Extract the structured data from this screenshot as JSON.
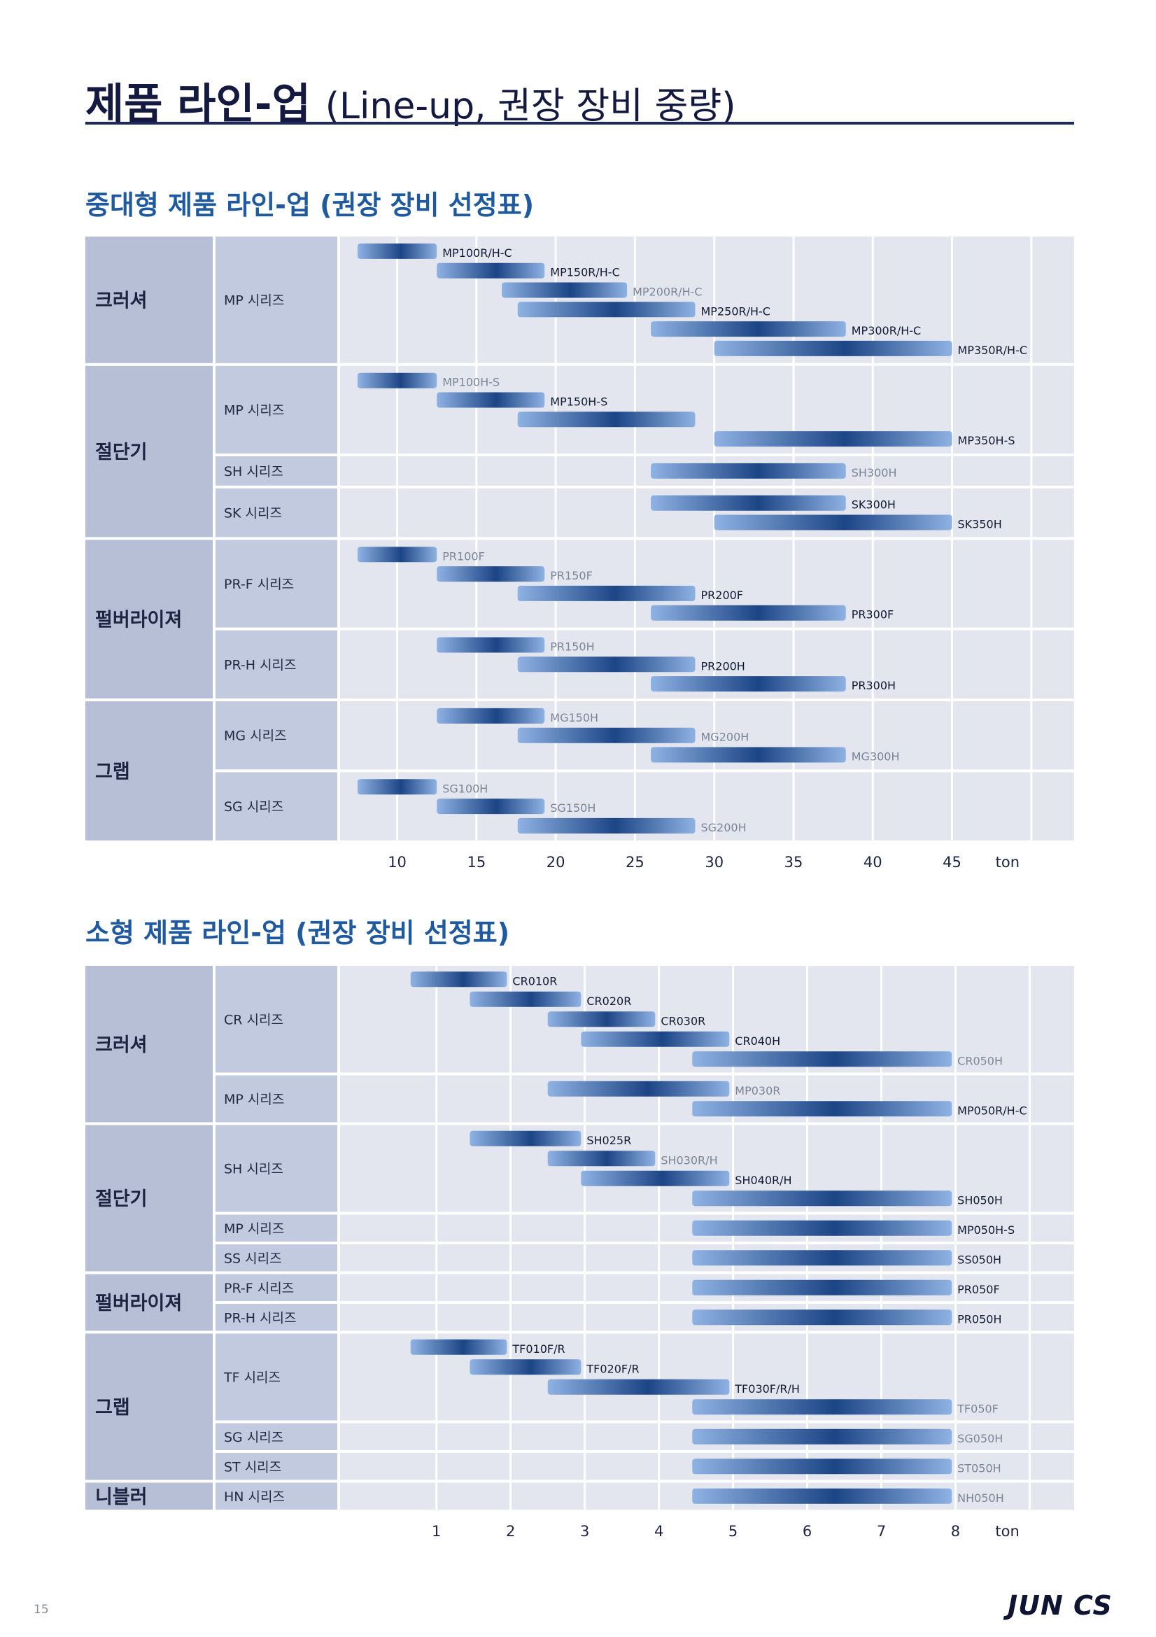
{
  "page": {
    "title_main": "제품 라인-업",
    "title_sub": "(Line-up, 권장 장비 중량)",
    "page_number": "15",
    "logo": "JUN CS"
  },
  "colors": {
    "navy": "#14193f",
    "section_blue": "#1f5aa0",
    "cat_bg": "#b6bfd6",
    "sub_bg": "#c1cadf",
    "plot_bg": "#e3e6ee",
    "bar_light": "#8fb2e3",
    "bar_dark": "#1c4585"
  },
  "sections": [
    {
      "title": "중대형 제품 라인-업 (권장 장비 선정표)"
    },
    {
      "title": "소형 제품 라인-업 (권장 장비 선정표)"
    }
  ],
  "chart_data": [
    {
      "type": "bar",
      "orientation": "horizontal-range",
      "unit": "ton",
      "ticks": [
        10,
        15,
        20,
        25,
        30,
        35,
        40,
        45
      ],
      "x_range": [
        6.4,
        52.7
      ],
      "categories": [
        {
          "name": "크러셔",
          "groups": [
            {
              "name": "MP 시리즈",
              "rows": 6,
              "bars": [
                {
                  "label": "MP100R/H-C",
                  "from": 7.5,
                  "to": 12.5,
                  "row": 0
                },
                {
                  "label": "MP150R/H-C",
                  "from": 12.5,
                  "to": 19.3,
                  "row": 1
                },
                {
                  "label": "MP200R/H-C",
                  "from": 16.6,
                  "to": 24.5,
                  "row": 2,
                  "dim": true
                },
                {
                  "label": "MP250R/H-C",
                  "from": 17.6,
                  "to": 28.8,
                  "row": 3
                },
                {
                  "label": "MP300R/H-C",
                  "from": 26.0,
                  "to": 38.3,
                  "row": 4
                },
                {
                  "label": "MP350R/H-C",
                  "from": 30.0,
                  "to": 45.0,
                  "row": 5
                }
              ]
            }
          ]
        },
        {
          "name": "절단기",
          "groups": [
            {
              "name": "MP 시리즈",
              "rows": 4,
              "bars": [
                {
                  "label": "MP100H-S",
                  "from": 7.5,
                  "to": 12.5,
                  "row": 0,
                  "dim": true
                },
                {
                  "label": "MP150H-S",
                  "from": 12.5,
                  "to": 19.3,
                  "row": 1
                },
                {
                  "label": "",
                  "from": 17.6,
                  "to": 28.8,
                  "row": 2
                },
                {
                  "label": "MP350H-S",
                  "from": 30.0,
                  "to": 45.0,
                  "row": 3
                }
              ]
            },
            {
              "name": "SH 시리즈",
              "rows": 1,
              "bars": [
                {
                  "label": "SH300H",
                  "from": 26.0,
                  "to": 38.3,
                  "row": 0,
                  "dim": true
                }
              ]
            },
            {
              "name": "SK 시리즈",
              "rows": 2,
              "bars": [
                {
                  "label": "SK300H",
                  "from": 26.0,
                  "to": 38.3,
                  "row": 0
                },
                {
                  "label": "SK350H",
                  "from": 30.0,
                  "to": 45.0,
                  "row": 1
                }
              ]
            }
          ]
        },
        {
          "name": "펄버라이져",
          "groups": [
            {
              "name": "PR-F 시리즈",
              "rows": 4,
              "bars": [
                {
                  "label": "PR100F",
                  "from": 7.5,
                  "to": 12.5,
                  "row": 0,
                  "dim": true
                },
                {
                  "label": "PR150F",
                  "from": 12.5,
                  "to": 19.3,
                  "row": 1,
                  "dim": true
                },
                {
                  "label": "PR200F",
                  "from": 17.6,
                  "to": 28.8,
                  "row": 2
                },
                {
                  "label": "PR300F",
                  "from": 26.0,
                  "to": 38.3,
                  "row": 3
                }
              ]
            },
            {
              "name": "PR-H 시리즈",
              "rows": 3,
              "bars": [
                {
                  "label": "PR150H",
                  "from": 12.5,
                  "to": 19.3,
                  "row": 0,
                  "dim": true
                },
                {
                  "label": "PR200H",
                  "from": 17.6,
                  "to": 28.8,
                  "row": 1
                },
                {
                  "label": "PR300H",
                  "from": 26.0,
                  "to": 38.3,
                  "row": 2
                }
              ]
            }
          ]
        },
        {
          "name": "그랩",
          "groups": [
            {
              "name": "MG 시리즈",
              "rows": 3,
              "bars": [
                {
                  "label": "MG150H",
                  "from": 12.5,
                  "to": 19.3,
                  "row": 0,
                  "dim": true
                },
                {
                  "label": "MG200H",
                  "from": 17.6,
                  "to": 28.8,
                  "row": 1,
                  "dim": true
                },
                {
                  "label": "MG300H",
                  "from": 26.0,
                  "to": 38.3,
                  "row": 2,
                  "dim": true
                }
              ]
            },
            {
              "name": "SG 시리즈",
              "rows": 3,
              "bars": [
                {
                  "label": "SG100H",
                  "from": 7.5,
                  "to": 12.5,
                  "row": 0,
                  "dim": true
                },
                {
                  "label": "SG150H",
                  "from": 12.5,
                  "to": 19.3,
                  "row": 1,
                  "dim": true
                },
                {
                  "label": "SG200H",
                  "from": 17.6,
                  "to": 28.8,
                  "row": 2,
                  "dim": true
                }
              ]
            }
          ]
        }
      ]
    },
    {
      "type": "bar",
      "orientation": "horizontal-range",
      "unit": "ton",
      "ticks": [
        1,
        2,
        3,
        4,
        5,
        6,
        7,
        8
      ],
      "x_range": [
        -0.3,
        9.6
      ],
      "categories": [
        {
          "name": "크러셔",
          "groups": [
            {
              "name": "CR 시리즈",
              "rows": 5,
              "bars": [
                {
                  "label": "CR010R",
                  "from": 0.65,
                  "to": 1.95,
                  "row": 0
                },
                {
                  "label": "CR020R",
                  "from": 1.45,
                  "to": 2.95,
                  "row": 1
                },
                {
                  "label": "CR030R",
                  "from": 2.5,
                  "to": 3.95,
                  "row": 2
                },
                {
                  "label": "CR040H",
                  "from": 2.95,
                  "to": 4.95,
                  "row": 3
                },
                {
                  "label": "CR050H",
                  "from": 4.45,
                  "to": 7.95,
                  "row": 4,
                  "dim": true
                }
              ]
            },
            {
              "name": "MP 시리즈",
              "rows": 2,
              "bars": [
                {
                  "label": "MP030R",
                  "from": 2.5,
                  "to": 4.95,
                  "row": 0,
                  "dim": true
                },
                {
                  "label": "MP050R/H-C",
                  "from": 4.45,
                  "to": 7.95,
                  "row": 1
                }
              ]
            }
          ]
        },
        {
          "name": "절단기",
          "groups": [
            {
              "name": "SH 시리즈",
              "rows": 4,
              "bars": [
                {
                  "label": "SH025R",
                  "from": 1.45,
                  "to": 2.95,
                  "row": 0
                },
                {
                  "label": "SH030R/H",
                  "from": 2.5,
                  "to": 3.95,
                  "row": 1,
                  "dim": true
                },
                {
                  "label": "SH040R/H",
                  "from": 2.95,
                  "to": 4.95,
                  "row": 2
                },
                {
                  "label": "SH050H",
                  "from": 4.45,
                  "to": 7.95,
                  "row": 3
                }
              ]
            },
            {
              "name": "MP 시리즈",
              "rows": 1,
              "bars": [
                {
                  "label": "MP050H-S",
                  "from": 4.45,
                  "to": 7.95,
                  "row": 0
                }
              ]
            },
            {
              "name": "SS 시리즈",
              "rows": 1,
              "bars": [
                {
                  "label": "SS050H",
                  "from": 4.45,
                  "to": 7.95,
                  "row": 0
                }
              ]
            }
          ]
        },
        {
          "name": "펄버라이져",
          "groups": [
            {
              "name": "PR-F 시리즈",
              "rows": 1,
              "bars": [
                {
                  "label": "PR050F",
                  "from": 4.45,
                  "to": 7.95,
                  "row": 0
                }
              ]
            },
            {
              "name": "PR-H 시리즈",
              "rows": 1,
              "bars": [
                {
                  "label": "PR050H",
                  "from": 4.45,
                  "to": 7.95,
                  "row": 0
                }
              ]
            }
          ]
        },
        {
          "name": "그랩",
          "groups": [
            {
              "name": "TF 시리즈",
              "rows": 4,
              "bars": [
                {
                  "label": "TF010F/R",
                  "from": 0.65,
                  "to": 1.95,
                  "row": 0
                },
                {
                  "label": "TF020F/R",
                  "from": 1.45,
                  "to": 2.95,
                  "row": 1
                },
                {
                  "label": "TF030F/R/H",
                  "from": 2.5,
                  "to": 4.95,
                  "row": 2
                },
                {
                  "label": "TF050F",
                  "from": 4.45,
                  "to": 7.95,
                  "row": 3,
                  "dim": true
                }
              ]
            },
            {
              "name": "SG 시리즈",
              "rows": 1,
              "bars": [
                {
                  "label": "SG050H",
                  "from": 4.45,
                  "to": 7.95,
                  "row": 0,
                  "dim": true
                }
              ]
            },
            {
              "name": "ST 시리즈",
              "rows": 1,
              "bars": [
                {
                  "label": "ST050H",
                  "from": 4.45,
                  "to": 7.95,
                  "row": 0,
                  "dim": true
                }
              ]
            }
          ]
        },
        {
          "name": "니블러",
          "groups": [
            {
              "name": "HN 시리즈",
              "rows": 1,
              "bars": [
                {
                  "label": "NH050H",
                  "from": 4.45,
                  "to": 7.95,
                  "row": 0,
                  "dim": true
                }
              ]
            }
          ]
        }
      ]
    }
  ]
}
